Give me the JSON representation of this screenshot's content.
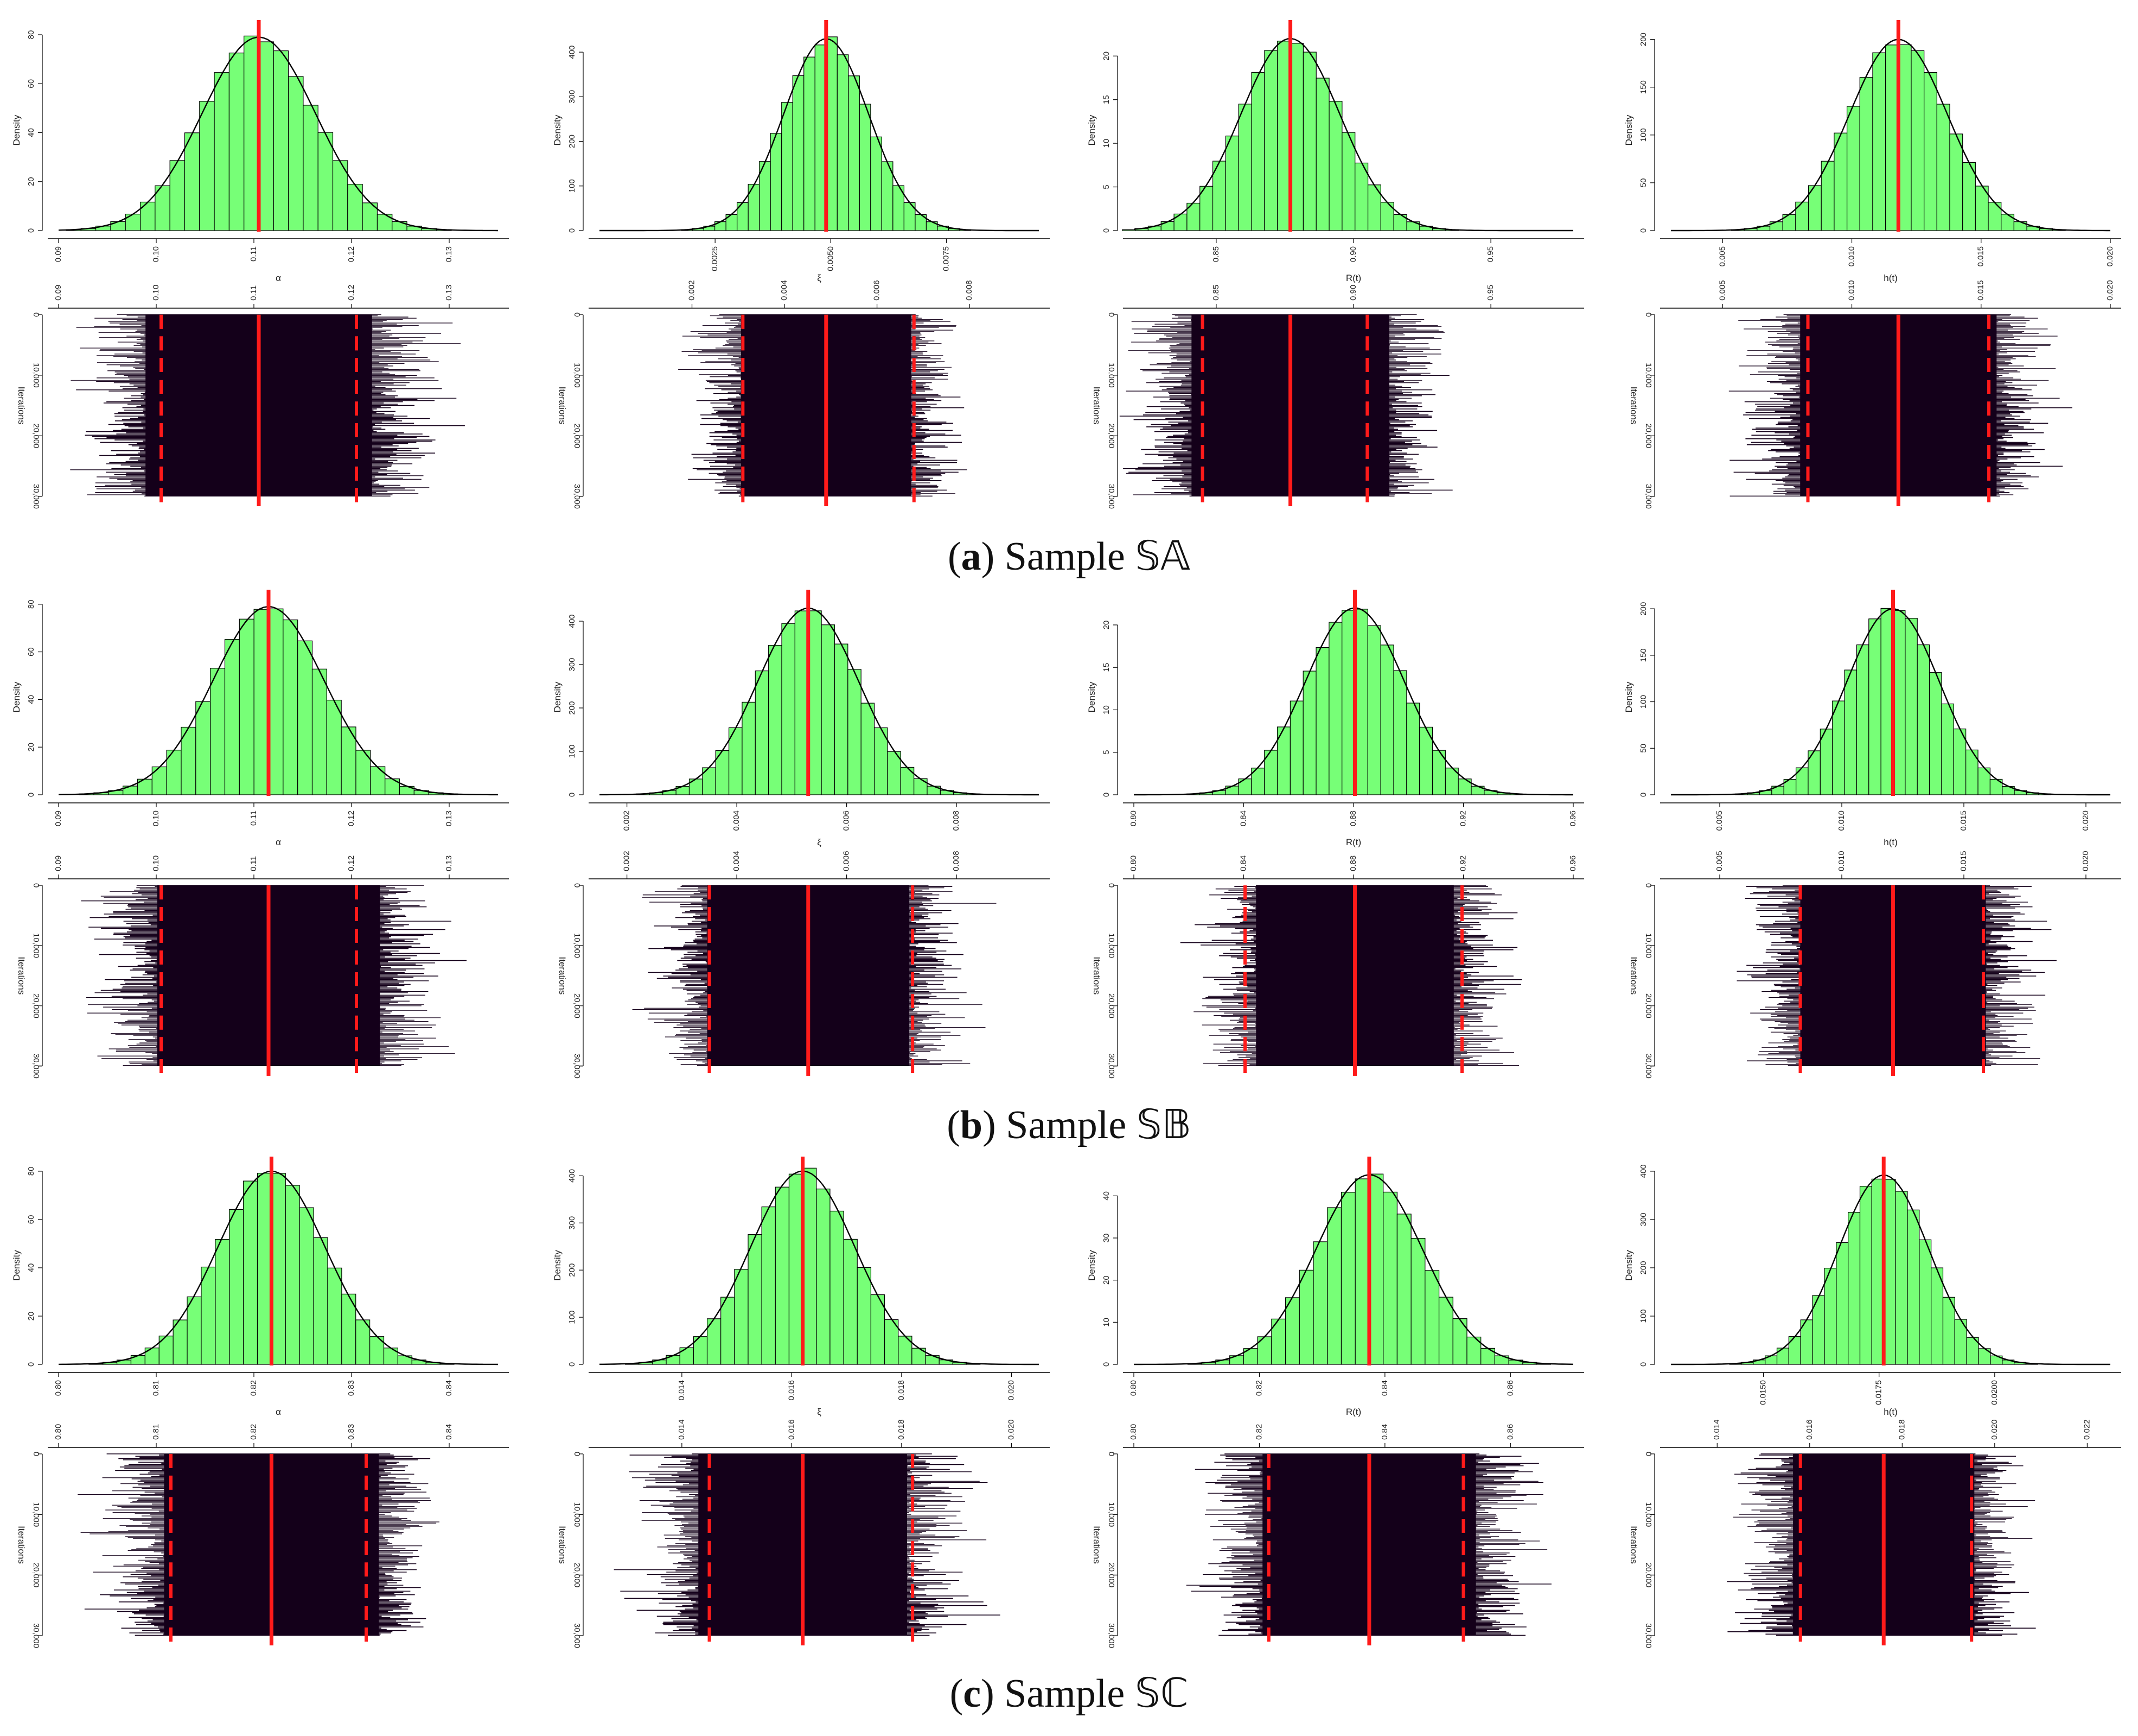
{
  "captions": [
    {
      "letter": "a",
      "text": "Sample 𝕊𝔸"
    },
    {
      "letter": "b",
      "text": "Sample 𝕊𝔹"
    },
    {
      "letter": "c",
      "text": "Sample 𝕊ℂ"
    }
  ],
  "colors": {
    "hist_fill": "#77ff77",
    "hist_edge": "#000000",
    "trace": "#14001a",
    "marker": "#ff1a1a"
  },
  "chart_data": [
    {
      "sample": "a",
      "type": "bar",
      "param": "α",
      "xlabel": "α",
      "ylabel": "Density",
      "iterations_label": "Iterations",
      "xlim": [
        0.09,
        0.135
      ],
      "xticks": [
        "0.09",
        "0.10",
        "0.11",
        "0.12",
        "0.13"
      ],
      "xtick_values": [
        0.09,
        0.1,
        0.11,
        0.12,
        0.13
      ],
      "ylim": [
        0,
        82
      ],
      "yticks": [
        "0",
        "20",
        "40",
        "60",
        "80"
      ],
      "ytick_values": [
        0,
        20,
        40,
        60,
        80
      ],
      "mean": 0.1105,
      "sd": 0.0058,
      "peak_density": 79,
      "lower": 0.1005,
      "upper": 0.1205,
      "iter_ticks": [
        "0",
        "10,000",
        "20,000",
        "30,000"
      ],
      "iter_values": [
        0,
        10000,
        20000,
        30000
      ],
      "n_iter": 30000
    },
    {
      "sample": "a",
      "type": "bar",
      "param": "ξ",
      "xlabel": "ξ",
      "ylabel": "Density",
      "iterations_label": "Iterations",
      "xlim": [
        0.0,
        0.0095
      ],
      "xticks": [
        "0.0025",
        "0.0050",
        "0.0075"
      ],
      "xtick_values": [
        0.0025,
        0.005,
        0.0075
      ],
      "trace_xticks": [
        "0.002",
        "0.004",
        "0.006",
        "0.008"
      ],
      "trace_xtick_values": [
        0.002,
        0.004,
        0.006,
        0.008
      ],
      "ylim": [
        0,
        450
      ],
      "yticks": [
        "0",
        "100",
        "200",
        "300",
        "400"
      ],
      "ytick_values": [
        0,
        100,
        200,
        300,
        400
      ],
      "mean": 0.0049,
      "sd": 0.00092,
      "peak_density": 430,
      "lower": 0.0031,
      "upper": 0.0068,
      "iter_ticks": [
        "0",
        "10,000",
        "20,000",
        "30,000"
      ],
      "iter_values": [
        0,
        10000,
        20000,
        30000
      ],
      "n_iter": 30000
    },
    {
      "sample": "a",
      "type": "bar",
      "param": "R(t)",
      "xlabel": "R(t)",
      "ylabel": "Density",
      "iterations_label": "Iterations",
      "xlim": [
        0.82,
        0.98
      ],
      "xticks": [
        "0.85",
        "0.90",
        "0.95"
      ],
      "xtick_values": [
        0.85,
        0.9,
        0.95
      ],
      "ylim": [
        0,
        23
      ],
      "yticks": [
        "0",
        "5",
        "10",
        "15",
        "20"
      ],
      "ytick_values": [
        0,
        5,
        10,
        15,
        20
      ],
      "mean": 0.877,
      "sd": 0.018,
      "peak_density": 22,
      "lower": 0.845,
      "upper": 0.905,
      "iter_ticks": [
        "0",
        "10,000",
        "20,000",
        "30,000"
      ],
      "iter_values": [
        0,
        10000,
        20000,
        30000
      ],
      "n_iter": 30000
    },
    {
      "sample": "a",
      "type": "bar",
      "param": "h(t)",
      "xlabel": "h(t)",
      "ylabel": "Density",
      "iterations_label": "Iterations",
      "xlim": [
        0.003,
        0.02
      ],
      "xticks": [
        "0.005",
        "0.010",
        "0.015",
        "0.020"
      ],
      "xtick_values": [
        0.005,
        0.01,
        0.015,
        0.02
      ],
      "ylim": [
        0,
        210
      ],
      "yticks": [
        "0",
        "50",
        "100",
        "150",
        "200"
      ],
      "ytick_values": [
        0,
        50,
        100,
        150,
        200
      ],
      "mean": 0.0118,
      "sd": 0.0019,
      "peak_density": 200,
      "lower": 0.0083,
      "upper": 0.0153,
      "iter_ticks": [
        "0",
        "10,000",
        "20,000",
        "30,000"
      ],
      "iter_values": [
        0,
        10000,
        20000,
        30000
      ],
      "n_iter": 30000
    },
    {
      "sample": "b",
      "type": "bar",
      "param": "α",
      "xlabel": "α",
      "ylabel": "Density",
      "iterations_label": "Iterations",
      "xlim": [
        0.09,
        0.135
      ],
      "xticks": [
        "0.09",
        "0.10",
        "0.11",
        "0.12",
        "0.13"
      ],
      "xtick_values": [
        0.09,
        0.1,
        0.11,
        0.12,
        0.13
      ],
      "ylim": [
        0,
        82
      ],
      "yticks": [
        "0",
        "20",
        "40",
        "60",
        "80"
      ],
      "ytick_values": [
        0,
        20,
        40,
        60,
        80
      ],
      "mean": 0.1115,
      "sd": 0.0057,
      "peak_density": 79,
      "lower": 0.1005,
      "upper": 0.1205,
      "iter_ticks": [
        "0",
        "10,000",
        "20,000",
        "30,000"
      ],
      "iter_values": [
        0,
        10000,
        20000,
        30000
      ],
      "n_iter": 30000
    },
    {
      "sample": "b",
      "type": "bar",
      "param": "ξ",
      "xlabel": "ξ",
      "ylabel": "Density",
      "iterations_label": "Iterations",
      "xlim": [
        0.0015,
        0.0095
      ],
      "xticks": [
        "0.002",
        "0.004",
        "0.006",
        "0.008"
      ],
      "xtick_values": [
        0.002,
        0.004,
        0.006,
        0.008
      ],
      "ylim": [
        0,
        450
      ],
      "yticks": [
        "0",
        "100",
        "200",
        "300",
        "400"
      ],
      "ytick_values": [
        0,
        100,
        200,
        300,
        400
      ],
      "mean": 0.0053,
      "sd": 0.00092,
      "peak_density": 430,
      "lower": 0.0035,
      "upper": 0.0072,
      "iter_ticks": [
        "0",
        "10,000",
        "20,000",
        "30,000"
      ],
      "iter_values": [
        0,
        10000,
        20000,
        30000
      ],
      "n_iter": 30000
    },
    {
      "sample": "b",
      "type": "bar",
      "param": "R(t)",
      "xlabel": "R(t)",
      "ylabel": "Density",
      "iterations_label": "Iterations",
      "xlim": [
        0.8,
        0.96
      ],
      "xticks": [
        "0.80",
        "0.84",
        "0.88",
        "0.92",
        "0.96"
      ],
      "xtick_values": [
        0.8,
        0.84,
        0.88,
        0.92,
        0.96
      ],
      "ylim": [
        0,
        23
      ],
      "yticks": [
        "0",
        "5",
        "10",
        "15",
        "20"
      ],
      "ytick_values": [
        0,
        5,
        10,
        15,
        20
      ],
      "mean": 0.8805,
      "sd": 0.018,
      "peak_density": 22,
      "lower": 0.8405,
      "upper": 0.9195,
      "iter_ticks": [
        "0",
        "10,000",
        "20,000",
        "30,000"
      ],
      "iter_values": [
        0,
        10000,
        20000,
        30000
      ],
      "n_iter": 30000
    },
    {
      "sample": "b",
      "type": "bar",
      "param": "h(t)",
      "xlabel": "h(t)",
      "ylabel": "Density",
      "iterations_label": "Iterations",
      "xlim": [
        0.003,
        0.021
      ],
      "xticks": [
        "0.005",
        "0.010",
        "0.015",
        "0.020"
      ],
      "xtick_values": [
        0.005,
        0.01,
        0.015,
        0.02
      ],
      "ylim": [
        0,
        210
      ],
      "yticks": [
        "0",
        "50",
        "100",
        "150",
        "200"
      ],
      "ytick_values": [
        0,
        50,
        100,
        150,
        200
      ],
      "mean": 0.0121,
      "sd": 0.0019,
      "peak_density": 200,
      "lower": 0.0083,
      "upper": 0.0158,
      "iter_ticks": [
        "0",
        "10,000",
        "20,000",
        "30,000"
      ],
      "iter_values": [
        0,
        10000,
        20000,
        30000
      ],
      "n_iter": 30000
    },
    {
      "sample": "c",
      "type": "bar",
      "param": "α",
      "xlabel": "α",
      "ylabel": "Density",
      "iterations_label": "Iterations",
      "xlim": [
        0.8,
        0.845
      ],
      "xticks": [
        "0.80",
        "0.81",
        "0.82",
        "0.83",
        "0.84"
      ],
      "xtick_values": [
        0.8,
        0.81,
        0.82,
        0.83,
        0.84
      ],
      "ylim": [
        0,
        82
      ],
      "yticks": [
        "0",
        "20",
        "40",
        "60",
        "80"
      ],
      "ytick_values": [
        0,
        20,
        40,
        60,
        80
      ],
      "mean": 0.8218,
      "sd": 0.0055,
      "peak_density": 80,
      "lower": 0.8115,
      "upper": 0.8315,
      "iter_ticks": [
        "0",
        "10,000",
        "20,000",
        "30,000"
      ],
      "iter_values": [
        0,
        10000,
        20000,
        30000
      ],
      "n_iter": 30000
    },
    {
      "sample": "c",
      "type": "bar",
      "param": "ξ",
      "xlabel": "ξ",
      "ylabel": "Density",
      "iterations_label": "Iterations",
      "xlim": [
        0.0125,
        0.0205
      ],
      "xticks": [
        "0.014",
        "0.016",
        "0.018",
        "0.020"
      ],
      "xtick_values": [
        0.014,
        0.016,
        0.018,
        0.02
      ],
      "ylim": [
        0,
        420
      ],
      "yticks": [
        "0",
        "100",
        "200",
        "300",
        "400"
      ],
      "ytick_values": [
        0,
        100,
        200,
        300,
        400
      ],
      "mean": 0.0162,
      "sd": 0.00095,
      "peak_density": 410,
      "lower": 0.0145,
      "upper": 0.0182,
      "iter_ticks": [
        "0",
        "10,000",
        "20,000",
        "30,000"
      ],
      "iter_values": [
        0,
        10000,
        20000,
        30000
      ],
      "n_iter": 30000
    },
    {
      "sample": "c",
      "type": "bar",
      "param": "R(t)",
      "xlabel": "R(t)",
      "ylabel": "Density",
      "iterations_label": "Iterations",
      "xlim": [
        0.8,
        0.87
      ],
      "xticks": [
        "0.80",
        "0.82",
        "0.84",
        "0.86"
      ],
      "xtick_values": [
        0.8,
        0.82,
        0.84,
        0.86
      ],
      "ylim": [
        0,
        47
      ],
      "yticks": [
        "0",
        "10",
        "20",
        "30",
        "40"
      ],
      "ytick_values": [
        0,
        10,
        20,
        30,
        40
      ],
      "mean": 0.8375,
      "sd": 0.0085,
      "peak_density": 45,
      "lower": 0.8215,
      "upper": 0.8525,
      "iter_ticks": [
        "0",
        "10,000",
        "20,000",
        "30,000"
      ],
      "iter_values": [
        0,
        10000,
        20000,
        30000
      ],
      "n_iter": 30000
    },
    {
      "sample": "c",
      "type": "bar",
      "param": "h(t)",
      "xlabel": "h(t)",
      "ylabel": "Density",
      "iterations_label": "Iterations",
      "xlim": [
        0.013,
        0.0225
      ],
      "xticks": [
        "0.0150",
        "0.0175",
        "0.0200"
      ],
      "xtick_values": [
        0.015,
        0.0175,
        0.02
      ],
      "trace_xticks": [
        "0.014",
        "0.016",
        "0.018",
        "0.020",
        "0.022"
      ],
      "trace_xtick_values": [
        0.014,
        0.016,
        0.018,
        0.02,
        0.022
      ],
      "ylim": [
        0,
        410
      ],
      "yticks": [
        "0",
        "100",
        "200",
        "300",
        "400"
      ],
      "ytick_values": [
        0,
        100,
        200,
        300,
        400
      ],
      "mean": 0.0176,
      "sd": 0.00098,
      "peak_density": 392,
      "lower": 0.0158,
      "upper": 0.0195,
      "iter_ticks": [
        "0",
        "10,000",
        "20,000",
        "30,000"
      ],
      "iter_values": [
        0,
        10000,
        20000,
        30000
      ],
      "n_iter": 30000
    }
  ]
}
